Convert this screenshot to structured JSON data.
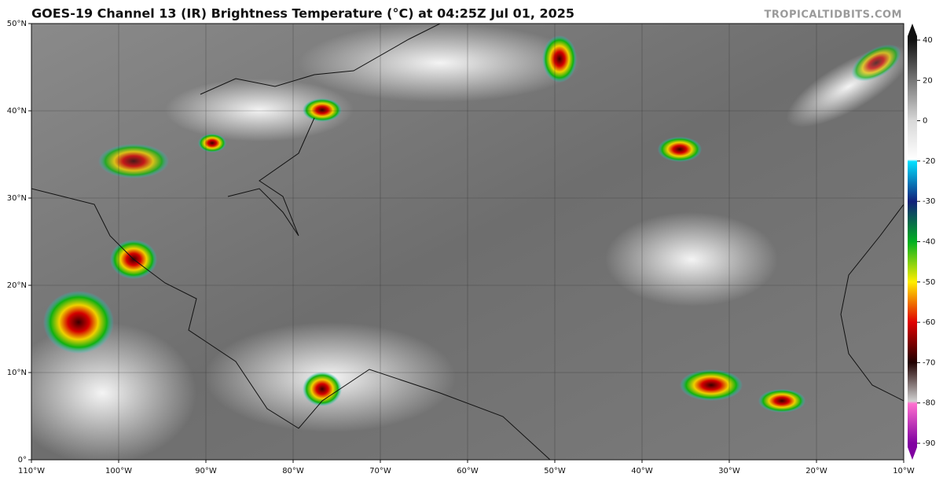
{
  "chart_data": {
    "type": "map",
    "title": "GOES-19 Channel 13 (IR) Brightness Temperature (°C) at 04:25Z Jul 01, 2025",
    "credit": "TROPICALTIDBITS.COM",
    "xlim": [
      -110,
      -10
    ],
    "ylim": [
      0,
      50
    ],
    "xticks": [
      {
        "value": -110,
        "label": "110°W"
      },
      {
        "value": -100,
        "label": "100°W"
      },
      {
        "value": -90,
        "label": "90°W"
      },
      {
        "value": -80,
        "label": "80°W"
      },
      {
        "value": -70,
        "label": "70°W"
      },
      {
        "value": -60,
        "label": "60°W"
      },
      {
        "value": -50,
        "label": "50°W"
      },
      {
        "value": -40,
        "label": "40°W"
      },
      {
        "value": -30,
        "label": "30°W"
      },
      {
        "value": -20,
        "label": "20°W"
      },
      {
        "value": -10,
        "label": "10°W"
      }
    ],
    "yticks": [
      {
        "value": 0,
        "label": "0°"
      },
      {
        "value": 10,
        "label": "10°N"
      },
      {
        "value": 20,
        "label": "20°N"
      },
      {
        "value": 30,
        "label": "30°N"
      },
      {
        "value": 40,
        "label": "40°N"
      },
      {
        "value": 50,
        "label": "50°N"
      }
    ],
    "grid": true,
    "colorbar_ticks": [
      40,
      20,
      0,
      -20,
      -30,
      -40,
      -50,
      -60,
      -70,
      -80,
      -90
    ]
  }
}
